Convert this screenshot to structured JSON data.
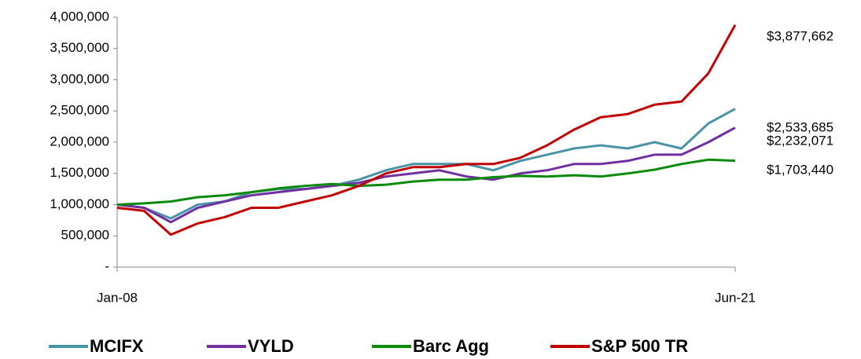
{
  "chart_data": {
    "type": "line",
    "categories": [
      "Jan-08",
      null,
      null,
      null,
      null,
      null,
      null,
      null,
      null,
      null,
      null,
      null,
      null,
      null,
      null,
      null,
      null,
      null,
      null,
      null,
      null,
      null,
      null,
      "Jun-21"
    ],
    "ylim": [
      0,
      4000000
    ],
    "yticks": [
      {
        "value": 0,
        "label": "-"
      },
      {
        "value": 500000,
        "label": "500,000"
      },
      {
        "value": 1000000,
        "label": "1,000,000"
      },
      {
        "value": 1500000,
        "label": "1,500,000"
      },
      {
        "value": 2000000,
        "label": "2,000,000"
      },
      {
        "value": 2500000,
        "label": "2,500,000"
      },
      {
        "value": 3000000,
        "label": "3,000,000"
      },
      {
        "value": 3500000,
        "label": "3,500,000"
      },
      {
        "value": 4000000,
        "label": "4,000,000"
      }
    ],
    "grid": false,
    "legend": "bottom",
    "series": [
      {
        "name": "MCIFX",
        "color": "#4a93a6",
        "values": [
          1000000,
          950000,
          780000,
          1000000,
          1050000,
          1200000,
          1250000,
          1250000,
          1300000,
          1400000,
          1550000,
          1650000,
          1650000,
          1650000,
          1550000,
          1700000,
          1800000,
          1900000,
          1950000,
          1900000,
          2000000,
          1900000,
          2300000,
          2533685
        ],
        "value_labels": [
          null,
          null,
          null,
          null,
          null,
          null,
          null,
          null,
          null,
          null,
          null,
          null,
          null,
          null,
          null,
          null,
          null,
          null,
          null,
          null,
          null,
          null,
          null,
          "$2,533,685"
        ]
      },
      {
        "name": "VYLD",
        "color": "#7030a0",
        "values": [
          1000000,
          950000,
          720000,
          950000,
          1050000,
          1150000,
          1200000,
          1250000,
          1300000,
          1350000,
          1450000,
          1500000,
          1550000,
          1450000,
          1400000,
          1500000,
          1550000,
          1650000,
          1650000,
          1700000,
          1800000,
          1800000,
          2000000,
          2232071
        ],
        "value_labels": [
          null,
          null,
          null,
          null,
          null,
          null,
          null,
          null,
          null,
          null,
          null,
          null,
          null,
          null,
          null,
          null,
          null,
          null,
          null,
          null,
          null,
          null,
          null,
          "$2,232,071"
        ]
      },
      {
        "name": "Barc Agg",
        "color": "#0a8a0a",
        "values": [
          1000000,
          1020000,
          1050000,
          1120000,
          1150000,
          1200000,
          1260000,
          1300000,
          1330000,
          1300000,
          1320000,
          1370000,
          1400000,
          1400000,
          1440000,
          1460000,
          1450000,
          1470000,
          1450000,
          1500000,
          1560000,
          1650000,
          1720000,
          1703440
        ],
        "value_labels": [
          null,
          null,
          null,
          null,
          null,
          null,
          null,
          null,
          null,
          null,
          null,
          null,
          null,
          null,
          null,
          null,
          null,
          null,
          null,
          null,
          null,
          null,
          null,
          "$1,703,440"
        ]
      },
      {
        "name": "S&P 500 TR",
        "color": "#c00000",
        "values": [
          950000,
          900000,
          520000,
          700000,
          800000,
          950000,
          950000,
          1050000,
          1150000,
          1300000,
          1500000,
          1600000,
          1600000,
          1650000,
          1650000,
          1750000,
          1950000,
          2200000,
          2400000,
          2450000,
          2600000,
          2650000,
          3100000,
          3877662
        ],
        "value_labels": [
          null,
          null,
          null,
          null,
          null,
          null,
          null,
          null,
          null,
          null,
          null,
          null,
          null,
          null,
          null,
          null,
          null,
          null,
          null,
          null,
          null,
          null,
          null,
          "$3,877,662"
        ]
      }
    ]
  }
}
